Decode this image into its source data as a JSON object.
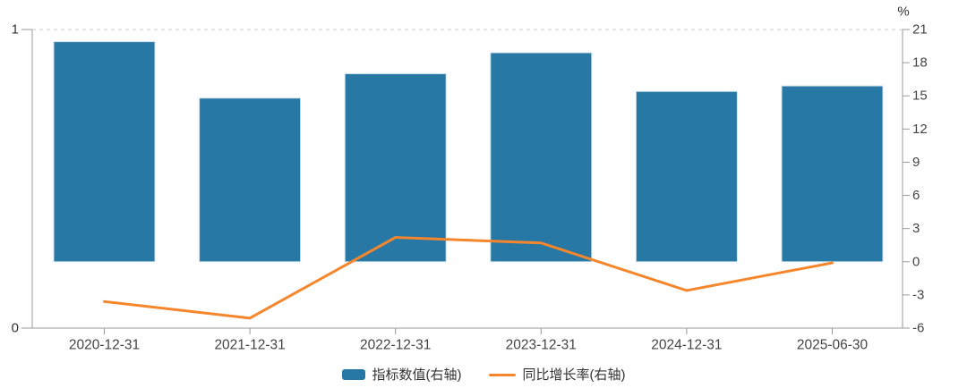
{
  "chart_data": {
    "type": "combo",
    "title": "",
    "categories": [
      "2020-12-31",
      "2021-12-31",
      "2022-12-31",
      "2023-12-31",
      "2024-12-31",
      "2025-06-30"
    ],
    "series": [
      {
        "name": "指标数值(右轴)",
        "type": "bar",
        "yaxis": "right",
        "values": [
          19.9,
          14.8,
          17.0,
          18.9,
          15.4,
          15.9
        ]
      },
      {
        "name": "同比增长率(右轴)",
        "type": "line",
        "yaxis": "right",
        "values": [
          -3.6,
          -5.1,
          2.2,
          1.7,
          -2.6,
          -0.1
        ]
      }
    ],
    "left_axis": {
      "range": [
        0,
        1
      ],
      "ticks": [
        1,
        0
      ]
    },
    "right_axis": {
      "unit": "%",
      "range": [
        -6,
        21
      ],
      "tick_step": 3,
      "ticks": [
        21,
        18,
        15,
        12,
        9,
        6,
        3,
        0,
        -3,
        -6
      ]
    },
    "grid": {
      "top_gridline_dashed": true,
      "other_gridlines": false
    },
    "legend_position": "bottom-center"
  },
  "colors": {
    "bar_fill": "#2878A6",
    "bar_border": "#CFE2EB",
    "line": "#F6862B",
    "axis_line": "#999999",
    "tick_label": "#444444",
    "left_value_label": "#333333",
    "unit_label": "#333333",
    "gridline": "#CCCCCC",
    "legend_text": "#333333",
    "background": "#FFFFFF"
  }
}
